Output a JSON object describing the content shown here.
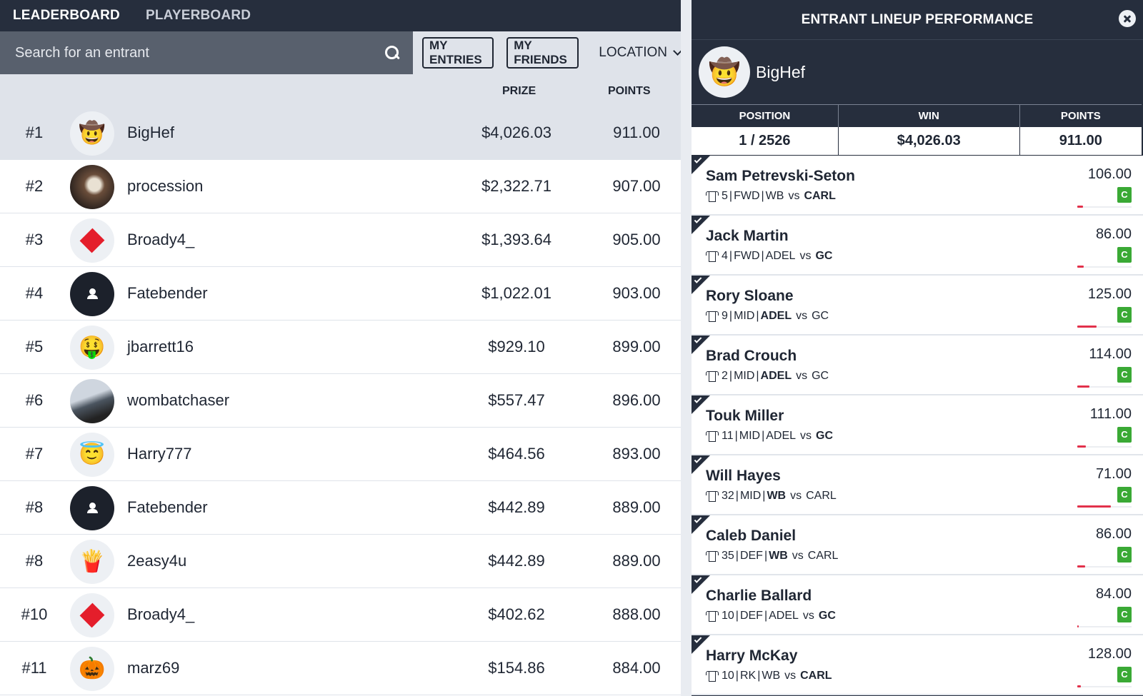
{
  "nav": {
    "tabs": [
      "LEADERBOARD",
      "PLAYERBOARD"
    ]
  },
  "search": {
    "placeholder": "Search for an entrant"
  },
  "filters": {
    "my_entries": "MY ENTRIES",
    "my_friends": "MY FRIENDS",
    "location": "LOCATION"
  },
  "columns": {
    "prize": "PRIZE",
    "points": "POINTS"
  },
  "entrants": [
    {
      "rank": "#1",
      "name": "BigHef",
      "prize": "$4,026.03",
      "points": "911.00",
      "avatar": "cowboy-face-emoji"
    },
    {
      "rank": "#2",
      "name": "procession",
      "prize": "$2,322.71",
      "points": "907.00",
      "avatar": "photo"
    },
    {
      "rank": "#3",
      "name": "Broady4_",
      "prize": "$1,393.64",
      "points": "905.00",
      "avatar": "red-diamond"
    },
    {
      "rank": "#4",
      "name": "Fatebender",
      "prize": "$1,022.01",
      "points": "903.00",
      "avatar": "default-user"
    },
    {
      "rank": "#5",
      "name": "jbarrett16",
      "prize": "$929.10",
      "points": "899.00",
      "avatar": "money-mouth-face-emoji"
    },
    {
      "rank": "#6",
      "name": "wombatchaser",
      "prize": "$557.47",
      "points": "896.00",
      "avatar": "photo"
    },
    {
      "rank": "#7",
      "name": "Harry777",
      "prize": "$464.56",
      "points": "893.00",
      "avatar": "halo-face-emoji"
    },
    {
      "rank": "#8",
      "name": "Fatebender",
      "prize": "$442.89",
      "points": "889.00",
      "avatar": "default-user"
    },
    {
      "rank": "#8",
      "name": "2easy4u",
      "prize": "$442.89",
      "points": "889.00",
      "avatar": "fries-emoji"
    },
    {
      "rank": "#10",
      "name": "Broady4_",
      "prize": "$402.62",
      "points": "888.00",
      "avatar": "red-diamond"
    },
    {
      "rank": "#11",
      "name": "marz69",
      "prize": "$154.86",
      "points": "884.00",
      "avatar": "jack-o-lantern-emoji"
    }
  ],
  "panel": {
    "title": "ENTRANT LINEUP PERFORMANCE",
    "user": "BigHef",
    "stat_headers": [
      "POSITION",
      "WIN",
      "POINTS"
    ],
    "stats": [
      "1 / 2526",
      "$4,026.03",
      "911.00"
    ],
    "captain_label": "C",
    "players": [
      {
        "name": "Sam Petrevski-Seton",
        "num": "5",
        "pos": "FWD",
        "team1": "WB",
        "team2": "CARL",
        "bold_side": "team2",
        "points": "106.00",
        "bar": 0.1
      },
      {
        "name": "Jack Martin",
        "num": "4",
        "pos": "FWD",
        "team1": "ADEL",
        "team2": "GC",
        "bold_side": "team2",
        "points": "86.00",
        "bar": 0.12
      },
      {
        "name": "Rory Sloane",
        "num": "9",
        "pos": "MID",
        "team1": "ADEL",
        "team2": "GC",
        "bold_side": "team1",
        "points": "125.00",
        "bar": 0.36
      },
      {
        "name": "Brad Crouch",
        "num": "2",
        "pos": "MID",
        "team1": "ADEL",
        "team2": "GC",
        "bold_side": "team1",
        "points": "114.00",
        "bar": 0.22
      },
      {
        "name": "Touk Miller",
        "num": "11",
        "pos": "MID",
        "team1": "ADEL",
        "team2": "GC",
        "bold_side": "team2",
        "points": "111.00",
        "bar": 0.16
      },
      {
        "name": "Will Hayes",
        "num": "32",
        "pos": "MID",
        "team1": "WB",
        "team2": "CARL",
        "bold_side": "team1",
        "points": "71.00",
        "bar": 0.62
      },
      {
        "name": "Caleb Daniel",
        "num": "35",
        "pos": "DEF",
        "team1": "WB",
        "team2": "CARL",
        "bold_side": "team1",
        "points": "86.00",
        "bar": 0.15
      },
      {
        "name": "Charlie Ballard",
        "num": "10",
        "pos": "DEF",
        "team1": "ADEL",
        "team2": "GC",
        "bold_side": "team2",
        "points": "84.00",
        "bar": 0.02
      },
      {
        "name": "Harry McKay",
        "num": "10",
        "pos": "RK",
        "team1": "WB",
        "team2": "CARL",
        "bold_side": "team2",
        "points": "128.00",
        "bar": 0.06
      }
    ],
    "vs": "vs"
  }
}
